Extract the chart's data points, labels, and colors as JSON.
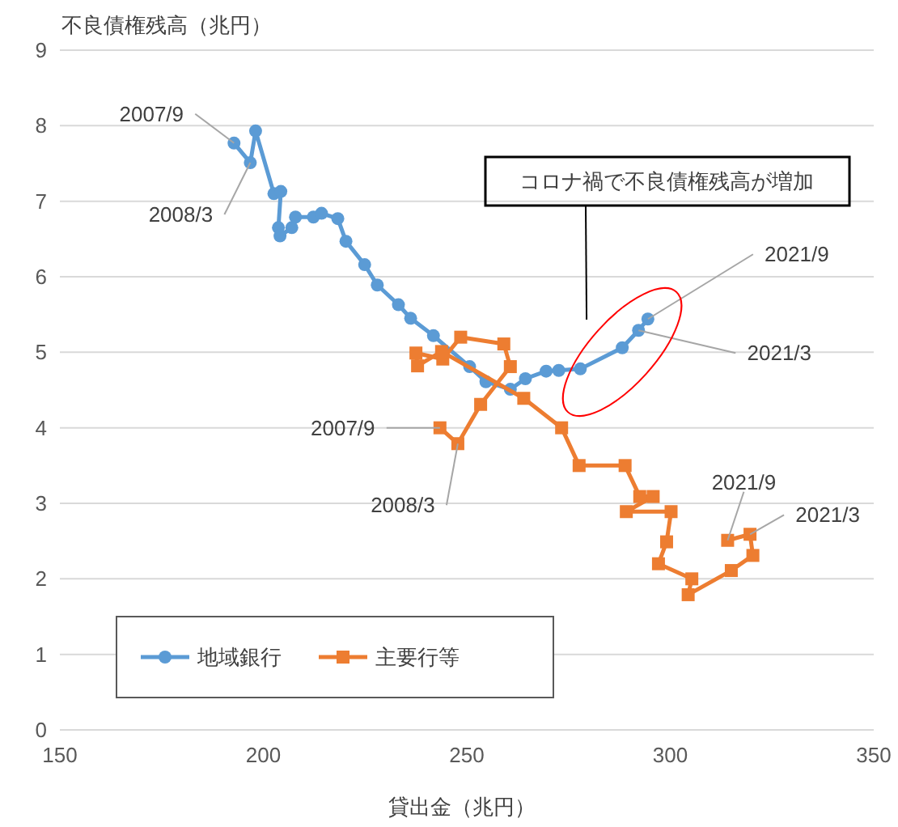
{
  "chart_data": {
    "type": "line",
    "ylabel": "不良債権残高（兆円）",
    "xlabel": "貸出金（兆円）",
    "xlim": [
      150,
      350
    ],
    "xticks": [
      150,
      200,
      250,
      300,
      350
    ],
    "ylim": [
      0,
      9
    ],
    "yticks": [
      0,
      1,
      2,
      3,
      4,
      5,
      6,
      7,
      8,
      9
    ],
    "grid": "y",
    "legend": "bottom left",
    "series": [
      {
        "name": "地域銀行",
        "color": "#5b9bd5",
        "marker": "circle",
        "x": [
          192.8,
          196.8,
          198.1,
          202.6,
          204.3,
          203.7,
          204.1,
          207.0,
          207.9,
          212.3,
          214.3,
          218.3,
          220.3,
          224.9,
          228.0,
          233.2,
          236.2,
          241.8,
          250.7,
          254.7,
          260.7,
          264.4,
          269.5,
          272.6,
          277.9,
          288.2,
          292.2,
          294.5
        ],
        "values": [
          7.77,
          7.51,
          7.93,
          7.1,
          7.13,
          6.65,
          6.54,
          6.65,
          6.79,
          6.79,
          6.84,
          6.77,
          6.47,
          6.16,
          5.89,
          5.63,
          5.45,
          5.22,
          4.81,
          4.61,
          4.51,
          4.65,
          4.75,
          4.76,
          4.78,
          5.06,
          5.29,
          5.44
        ]
      },
      {
        "name": "主要行等",
        "color": "#ed7d31",
        "marker": "square",
        "x": [
          243.4,
          247.8,
          253.4,
          260.7,
          259.1,
          248.5,
          244.1,
          237.5,
          237.9,
          243.8,
          264.0,
          273.3,
          277.6,
          288.9,
          292.5,
          295.8,
          289.2,
          300.2,
          299.1,
          297.1,
          305.3,
          304.4,
          315.0,
          320.3,
          319.6,
          314.1
        ],
        "values": [
          4.0,
          3.79,
          4.31,
          4.81,
          5.11,
          5.2,
          4.91,
          4.99,
          4.82,
          5.01,
          4.39,
          4.0,
          3.5,
          3.5,
          3.09,
          3.09,
          2.89,
          2.89,
          2.49,
          2.2,
          2.0,
          1.79,
          2.11,
          2.31,
          2.59,
          2.51
        ]
      }
    ],
    "annotations": [
      {
        "text": "2007/9",
        "x": 192.8,
        "y": 7.77
      },
      {
        "text": "2008/3",
        "x": 196.8,
        "y": 7.51
      },
      {
        "text": "2021/9",
        "x": 294.5,
        "y": 5.44
      },
      {
        "text": "2021/3",
        "x": 292.2,
        "y": 5.29
      },
      {
        "text": "2007/9",
        "x": 243.4,
        "y": 4.0
      },
      {
        "text": "2008/3",
        "x": 247.8,
        "y": 3.79
      },
      {
        "text": "2021/9",
        "x": 314.1,
        "y": 2.51
      },
      {
        "text": "2021/3",
        "x": 319.6,
        "y": 2.59
      },
      "コロナ禍で不良債権残高が増加"
    ]
  }
}
